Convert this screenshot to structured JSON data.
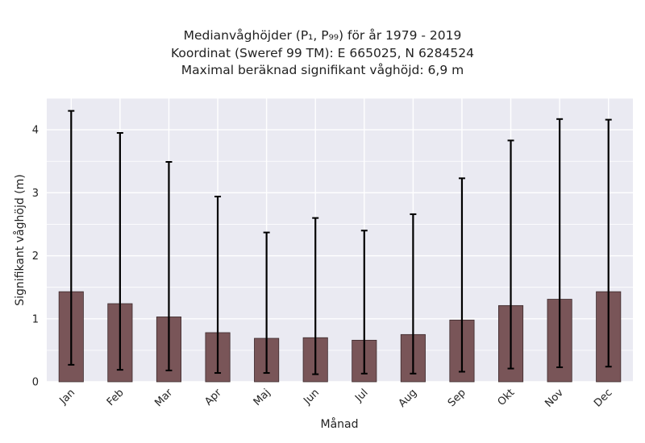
{
  "chart_data": {
    "type": "bar",
    "title_lines": [
      "Medianvåghöjder (P₁, P₉₉) för år 1979 - 2019",
      "Koordinat (Sweref 99 TM): E 665025, N 6284524",
      "Maximal beräknad signifikant våghöjd: 6,9 m"
    ],
    "xlabel": "Månad",
    "ylabel": "Signifikant våghöjd (m)",
    "categories": [
      "Jan",
      "Feb",
      "Mar",
      "Apr",
      "Maj",
      "Jun",
      "Jul",
      "Aug",
      "Sep",
      "Okt",
      "Nov",
      "Dec"
    ],
    "values": [
      1.43,
      1.24,
      1.03,
      0.78,
      0.69,
      0.7,
      0.66,
      0.75,
      0.98,
      1.21,
      1.31,
      1.43
    ],
    "error_low": [
      0.27,
      0.19,
      0.18,
      0.14,
      0.14,
      0.12,
      0.13,
      0.13,
      0.16,
      0.21,
      0.23,
      0.24
    ],
    "error_high": [
      4.3,
      3.95,
      3.49,
      2.94,
      2.37,
      2.6,
      2.4,
      2.66,
      3.23,
      3.83,
      4.17,
      4.16
    ],
    "yticks": [
      0,
      1,
      2,
      3,
      4
    ],
    "ylim": [
      0,
      4.5
    ],
    "grid": true,
    "colors": {
      "bar": "#795558",
      "bar_edge": "#3c2a2c",
      "error": "#000000",
      "background": "#eaeaf2",
      "grid": "#ffffff"
    }
  }
}
